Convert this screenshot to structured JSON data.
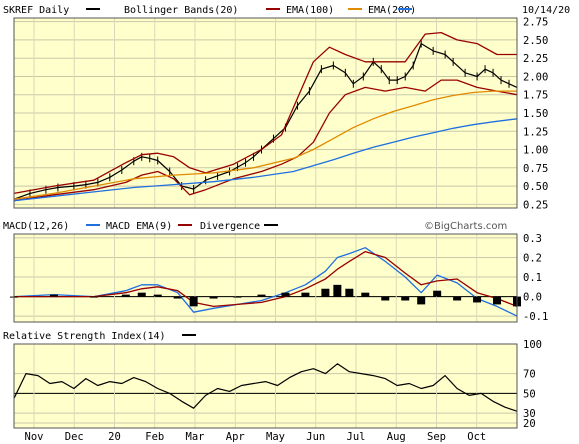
{
  "chart_data": [
    {
      "type": "line",
      "panel": "price",
      "title": "SKREF Daily",
      "date_label": "10/14/20",
      "legend": [
        {
          "label": "SKREF Daily",
          "color": "#000000"
        },
        {
          "label": "Bollinger Bands(20)",
          "color": "#990000"
        },
        {
          "label": "EMA(100)",
          "color": "#e08a00"
        },
        {
          "label": "EMA(200)",
          "color": "#1f6fe0"
        }
      ],
      "ylim": [
        0.2,
        2.8
      ],
      "y_ticks": [
        "2.75",
        "2.50",
        "2.25",
        "2.00",
        "1.75",
        "1.50",
        "1.25",
        "1.00",
        "0.75",
        "0.50",
        "0.25"
      ],
      "x_ticks": [
        "Nov",
        "Dec",
        "20",
        "Feb",
        "Mar",
        "Apr",
        "May",
        "Jun",
        "Jul",
        "Aug",
        "Sep",
        "Oct"
      ],
      "credit": "©BigCharts.com",
      "grid": true,
      "series": [
        {
          "name": "SKREF Daily",
          "x": [
            0,
            8,
            16,
            22,
            30,
            36,
            42,
            48,
            54,
            60,
            64,
            68,
            72,
            78,
            84,
            90,
            96,
            102,
            108,
            112,
            116,
            120,
            124,
            130,
            136,
            142,
            148,
            154,
            160,
            166,
            170,
            175,
            180,
            184,
            188,
            192,
            196,
            200,
            204,
            210,
            216,
            220,
            226,
            232,
            236,
            240,
            244,
            248,
            252
          ],
          "values": [
            0.32,
            0.4,
            0.45,
            0.48,
            0.5,
            0.52,
            0.55,
            0.62,
            0.72,
            0.84,
            0.9,
            0.88,
            0.85,
            0.7,
            0.5,
            0.46,
            0.58,
            0.64,
            0.7,
            0.76,
            0.82,
            0.9,
            1.0,
            1.15,
            1.3,
            1.6,
            1.8,
            2.1,
            2.15,
            2.05,
            1.9,
            2.0,
            2.2,
            2.1,
            1.95,
            1.95,
            2.0,
            2.15,
            2.45,
            2.35,
            2.3,
            2.2,
            2.05,
            2.0,
            2.1,
            2.05,
            1.95,
            1.9,
            1.85
          ]
        },
        {
          "name": "BB upper",
          "x": [
            0,
            20,
            40,
            56,
            64,
            72,
            80,
            88,
            96,
            110,
            124,
            134,
            142,
            150,
            158,
            166,
            176,
            186,
            196,
            206,
            214,
            222,
            232,
            242,
            252
          ],
          "values": [
            0.4,
            0.5,
            0.58,
            0.82,
            0.93,
            0.95,
            0.9,
            0.75,
            0.68,
            0.8,
            1.0,
            1.2,
            1.7,
            2.2,
            2.4,
            2.3,
            2.2,
            2.2,
            2.2,
            2.58,
            2.6,
            2.5,
            2.45,
            2.3,
            2.3
          ]
        },
        {
          "name": "BB lower",
          "x": [
            0,
            20,
            40,
            56,
            64,
            72,
            80,
            88,
            96,
            110,
            124,
            134,
            142,
            150,
            158,
            166,
            176,
            186,
            196,
            206,
            214,
            222,
            232,
            242,
            252
          ],
          "values": [
            0.3,
            0.38,
            0.45,
            0.55,
            0.65,
            0.7,
            0.6,
            0.38,
            0.45,
            0.6,
            0.7,
            0.8,
            0.9,
            1.1,
            1.5,
            1.75,
            1.85,
            1.8,
            1.85,
            1.8,
            1.95,
            1.95,
            1.85,
            1.8,
            1.75
          ]
        },
        {
          "name": "EMA(100)",
          "x": [
            0,
            20,
            40,
            60,
            80,
            100,
            120,
            140,
            150,
            160,
            170,
            180,
            190,
            200,
            210,
            220,
            230,
            240,
            252
          ],
          "values": [
            0.32,
            0.4,
            0.5,
            0.6,
            0.65,
            0.68,
            0.75,
            0.88,
            1.0,
            1.15,
            1.3,
            1.42,
            1.52,
            1.6,
            1.68,
            1.74,
            1.78,
            1.8,
            1.8
          ]
        },
        {
          "name": "EMA(200)",
          "x": [
            0,
            20,
            40,
            60,
            80,
            100,
            120,
            140,
            150,
            160,
            170,
            180,
            190,
            200,
            210,
            220,
            230,
            240,
            252
          ],
          "values": [
            0.3,
            0.36,
            0.42,
            0.48,
            0.52,
            0.56,
            0.62,
            0.7,
            0.78,
            0.86,
            0.95,
            1.03,
            1.1,
            1.17,
            1.23,
            1.29,
            1.34,
            1.38,
            1.42
          ]
        }
      ]
    },
    {
      "type": "line",
      "panel": "macd",
      "title": "MACD(12,26)",
      "legend": [
        {
          "label": "MACD(12,26)",
          "color": "#1f6fe0"
        },
        {
          "label": "MACD EMA(9)",
          "color": "#990000"
        },
        {
          "label": "Divergence",
          "color": "#000000"
        }
      ],
      "ylim": [
        -0.13,
        0.32
      ],
      "y_ticks": [
        "0.3",
        "0.2",
        "0.1",
        "0.0",
        "-0.1"
      ],
      "series": [
        {
          "name": "MACD(12,26)",
          "x": [
            0,
            20,
            40,
            56,
            64,
            72,
            82,
            90,
            100,
            112,
            124,
            136,
            146,
            156,
            162,
            168,
            176,
            186,
            196,
            204,
            212,
            222,
            232,
            242,
            252
          ],
          "values": [
            0.0,
            0.01,
            0.0,
            0.03,
            0.06,
            0.06,
            0.02,
            -0.08,
            -0.06,
            -0.04,
            -0.02,
            0.02,
            0.06,
            0.13,
            0.2,
            0.22,
            0.25,
            0.18,
            0.1,
            0.02,
            0.11,
            0.07,
            -0.01,
            -0.05,
            -0.1
          ]
        },
        {
          "name": "MACD EMA(9)",
          "x": [
            0,
            20,
            40,
            56,
            64,
            72,
            82,
            90,
            100,
            112,
            124,
            136,
            146,
            156,
            162,
            168,
            176,
            186,
            196,
            204,
            212,
            222,
            232,
            242,
            252
          ],
          "values": [
            0.0,
            0.0,
            0.0,
            0.02,
            0.04,
            0.05,
            0.03,
            -0.03,
            -0.05,
            -0.04,
            -0.03,
            0.0,
            0.04,
            0.09,
            0.14,
            0.18,
            0.23,
            0.2,
            0.12,
            0.06,
            0.08,
            0.09,
            0.02,
            -0.01,
            -0.05
          ]
        },
        {
          "name": "Divergence",
          "x": [
            0,
            20,
            40,
            56,
            64,
            72,
            82,
            90,
            100,
            112,
            124,
            136,
            146,
            156,
            162,
            168,
            176,
            186,
            196,
            204,
            212,
            222,
            232,
            242,
            252
          ],
          "values": [
            0.0,
            0.01,
            0.0,
            0.01,
            0.02,
            0.01,
            -0.01,
            -0.05,
            -0.01,
            0.0,
            0.01,
            0.02,
            0.02,
            0.04,
            0.06,
            0.04,
            0.02,
            -0.02,
            -0.02,
            -0.04,
            0.03,
            -0.02,
            -0.03,
            -0.04,
            -0.05
          ]
        }
      ]
    },
    {
      "type": "line",
      "panel": "rsi",
      "title": "Relative Strength Index(14)",
      "legend": [
        {
          "label": "Relative Strength Index(14)",
          "color": "#000000"
        }
      ],
      "ylim": [
        15,
        100
      ],
      "y_ticks": [
        "100",
        "70",
        "50",
        "30",
        "20"
      ],
      "reference_line": 50,
      "series": [
        {
          "name": "Relative Strength Index(14)",
          "x": [
            0,
            6,
            12,
            18,
            24,
            30,
            36,
            42,
            48,
            54,
            60,
            66,
            72,
            78,
            84,
            90,
            96,
            102,
            108,
            114,
            120,
            126,
            132,
            138,
            144,
            150,
            156,
            162,
            168,
            174,
            180,
            186,
            192,
            198,
            204,
            210,
            216,
            222,
            228,
            234,
            240,
            246,
            252
          ],
          "values": [
            45,
            70,
            68,
            60,
            62,
            55,
            65,
            58,
            62,
            60,
            66,
            62,
            55,
            50,
            42,
            35,
            48,
            55,
            52,
            58,
            60,
            62,
            58,
            66,
            72,
            75,
            70,
            80,
            72,
            70,
            68,
            65,
            58,
            60,
            55,
            58,
            68,
            55,
            48,
            50,
            42,
            36,
            32
          ]
        }
      ]
    }
  ]
}
